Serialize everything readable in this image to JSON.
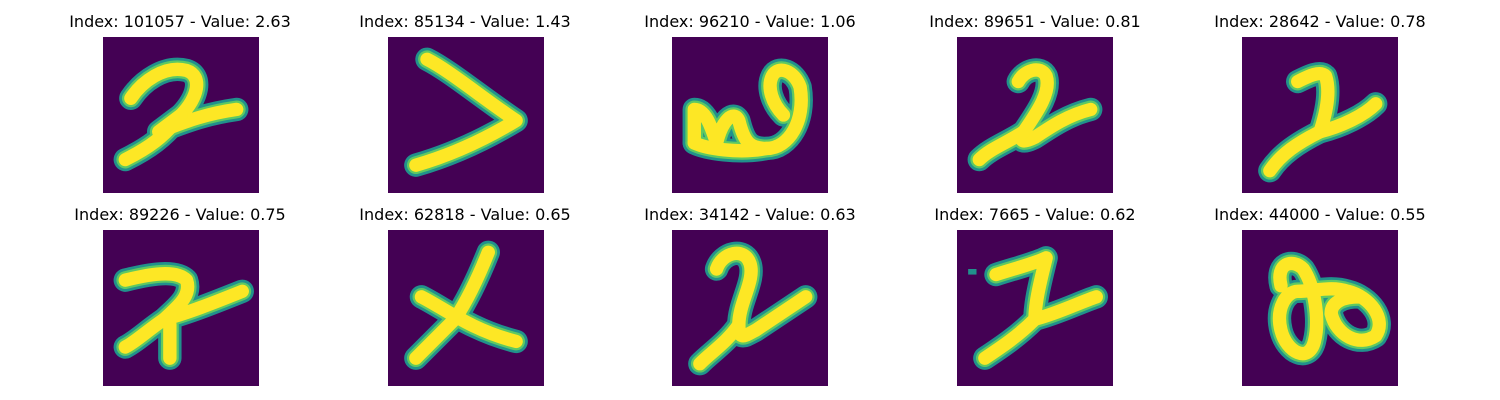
{
  "colors": {
    "background": "#440154",
    "stroke_edge": "#21918c",
    "stroke_mid": "#5ec962",
    "stroke_core": "#fde725"
  },
  "panels": [
    {
      "title": "Index: 101057 - Value: 2.63",
      "glyph": "curved-two-stroke"
    },
    {
      "title": "Index: 85134 - Value: 1.43",
      "glyph": "chevron-stroke"
    },
    {
      "title": "Index: 96210 - Value: 1.06",
      "glyph": "omega-like-stroke"
    },
    {
      "title": "Index: 89651 - Value: 0.81",
      "glyph": "two-stroke"
    },
    {
      "title": "Index: 28642 - Value: 0.78",
      "glyph": "one-like-two-stroke"
    },
    {
      "title": "Index: 89226 - Value: 0.75",
      "glyph": "loose-two-stroke"
    },
    {
      "title": "Index: 62818 - Value: 0.65",
      "glyph": "cross-stroke"
    },
    {
      "title": "Index: 34142 - Value: 0.63",
      "glyph": "hook-two-stroke"
    },
    {
      "title": "Index: 7665 - Value: 0.62",
      "glyph": "z-like-two-stroke"
    },
    {
      "title": "Index: 44000 - Value: 0.55",
      "glyph": "infinity-loop-stroke"
    }
  ]
}
